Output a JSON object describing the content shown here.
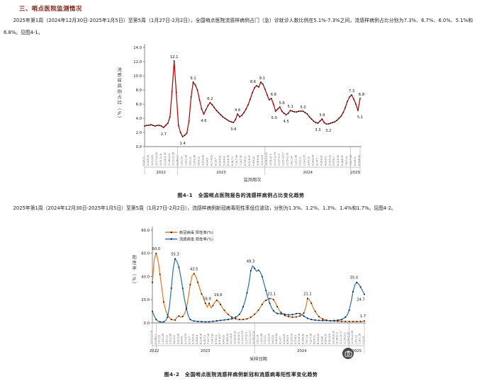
{
  "page": {
    "section_title": "三、哨点医院监测情况",
    "paragraph1": "2025年第1周（2024年12月30日-2025年1月5日）至第5周（1月27日-2月2日），全国哨点医院流感样病例占门（急）诊就诊人数比例在5.1%-7.3%之间，流感样病例占比分别为7.3%、6.7%、6.0%、5.1%和6.8%。见图4-1。",
    "caption1": "图4-1　全国哨点医院报告的流感样病例占比变化趋势",
    "paragraph2": "2025年第1周（2024年12月30日-2025年1月5日）至第5周（1月27日-2月2日），流感样病例新冠病毒阳性率低位波动，分别为1.3%、1.2%、1.3%、1.4%和1.7%。见图4-2。",
    "caption2": "图4-2　全国哨点医院流感样病例新冠和流感病毒阳性率变化趋势",
    "title_color": "#7e1d10"
  },
  "floating_button": {
    "bg": "#484848",
    "icon": "camera-icon"
  },
  "chart_data": [
    {
      "type": "line",
      "ylabel": "流感样病例占比（%）",
      "xlabel": "监测周次",
      "ylim": [
        0,
        14
      ],
      "ystep": 2,
      "grid": false,
      "x_tick_start_date": [
        2022,
        9,
        5
      ],
      "x_tick_format": "M.D-M.D weekly, rotated, illegible at scale",
      "year_groups": [
        {
          "label": "2022",
          "from": 0,
          "to": 15.5
        },
        {
          "label": "2023",
          "from": 15.5,
          "to": 57
        },
        {
          "label": "2024",
          "from": 57,
          "to": 97.5
        },
        {
          "label": "2025",
          "from": 97.5,
          "to": 102
        }
      ],
      "series": [
        {
          "name": "流感样病例占比(%)",
          "color": "#c00000",
          "values": [
            2.9,
            3.0,
            3.0,
            3.1,
            3.0,
            2.9,
            3.0,
            3.0,
            2.9,
            2.7,
            3.0,
            3.3,
            4.2,
            7.8,
            12.1,
            7.6,
            3.0,
            2.0,
            1.4,
            1.6,
            1.9,
            3.6,
            7.0,
            9.1,
            8.7,
            8.0,
            6.6,
            5.3,
            4.6,
            5.2,
            5.8,
            6.2,
            5.9,
            5.5,
            5.1,
            4.8,
            4.5,
            4.2,
            4.0,
            3.8,
            3.6,
            3.5,
            3.4,
            3.8,
            4.6,
            4.2,
            4.4,
            4.8,
            5.3,
            5.9,
            6.7,
            7.6,
            8.3,
            8.6,
            8.4,
            9.1,
            8.8,
            8.1,
            7.3,
            6.6,
            6.8,
            6.0,
            5.0,
            5.3,
            5.6,
            5.0,
            4.7,
            4.5,
            4.7,
            5.1,
            5.0,
            4.9,
            4.9,
            5.0,
            5.0,
            5.0,
            4.8,
            4.6,
            4.2,
            3.9,
            3.6,
            3.4,
            3.3,
            3.6,
            3.9,
            3.4,
            3.2,
            3.2,
            3.3,
            3.4,
            3.5,
            3.7,
            4.0,
            4.3,
            4.8,
            5.5,
            6.4,
            7.0,
            7.3,
            6.7,
            6.0,
            5.1,
            6.8
          ],
          "point_labels": [
            {
              "i": 9,
              "t": "2.7",
              "dy": 11
            },
            {
              "i": 14,
              "t": "12.1",
              "dy": -4
            },
            {
              "i": 18,
              "t": "1.4",
              "dy": 11
            },
            {
              "i": 23,
              "t": "9.1",
              "dy": -4
            },
            {
              "i": 28,
              "t": "4.6",
              "dy": 11
            },
            {
              "i": 31,
              "t": "6.2",
              "dy": -4
            },
            {
              "i": 42,
              "t": "3.4",
              "dy": 11
            },
            {
              "i": 44,
              "t": "4.6",
              "dy": -4
            },
            {
              "i": 53,
              "t": "8.6",
              "dy": -4,
              "dx": -5
            },
            {
              "i": 55,
              "t": "9.1",
              "dy": -4,
              "dx": 2
            },
            {
              "i": 60,
              "t": "6.8",
              "dy": -4,
              "dx": 3
            },
            {
              "i": 62,
              "t": "5.0",
              "dy": 11,
              "dx": -2
            },
            {
              "i": 64,
              "t": "5.6",
              "dy": -4,
              "dx": 3
            },
            {
              "i": 67,
              "t": "4.5",
              "dy": 11
            },
            {
              "i": 69,
              "t": "5.1",
              "dy": -4
            },
            {
              "i": 75,
              "t": "5.0",
              "dy": -4
            },
            {
              "i": 82,
              "t": "3.3",
              "dy": 11
            },
            {
              "i": 84,
              "t": "3.9",
              "dy": -4
            },
            {
              "i": 87,
              "t": "3.2",
              "dy": 11
            },
            {
              "i": 98,
              "t": "7.3",
              "dy": -4
            },
            {
              "i": 101,
              "t": "5.1",
              "dy": 11,
              "dx": 3
            },
            {
              "i": 102,
              "t": "6.8",
              "dy": -4,
              "dx": 2
            }
          ]
        }
      ]
    },
    {
      "type": "line",
      "ylabel": "阳性率（%）",
      "xlabel": "采样日期",
      "ylim": [
        0,
        80
      ],
      "ystep": 20,
      "grid": false,
      "legend_position": "top-left-inside",
      "x_tick_start_date": [
        2022,
        12,
        12
      ],
      "x_tick_format": "M.D-M.D weekly, rotated, illegible at scale",
      "year_groups": [
        {
          "label": "2022",
          "from": 0,
          "to": 2
        },
        {
          "label": "2023",
          "from": 2,
          "to": 54
        },
        {
          "label": "2024",
          "from": 54,
          "to": 104
        },
        {
          "label": "2025",
          "from": 104,
          "to": 112
        }
      ],
      "series": [
        {
          "name": "新冠病毒 阳性率(%)",
          "color": "#e87722",
          "values": [
            35,
            55,
            60,
            54,
            42,
            30,
            18,
            11,
            7,
            4.5,
            3,
            2.6,
            2.5,
            5,
            6,
            5,
            5.5,
            8,
            13,
            22,
            33,
            41,
            42.5,
            40,
            35,
            30,
            25,
            22,
            17,
            13.5,
            16.9,
            13,
            15,
            18,
            19.6,
            18.5,
            16,
            13,
            11,
            9,
            7.5,
            6,
            5,
            4.2,
            3.6,
            3.2,
            3,
            3,
            3,
            3.2,
            3.5,
            4,
            5,
            6,
            7.5,
            9,
            11,
            13.5,
            16,
            18.5,
            19.5,
            20.5,
            21,
            21.1,
            20,
            17.5,
            14,
            11,
            9,
            7.5,
            6.5,
            5.8,
            5.4,
            5.2,
            5,
            5,
            5.2,
            5.5,
            6,
            7,
            8.5,
            13,
            21.1,
            20,
            17,
            13,
            10,
            7.5,
            5.5,
            4.2,
            3.4,
            2.8,
            2.4,
            2.1,
            1.9,
            1.8,
            1.7,
            1.6,
            1.5,
            1.5,
            1.4,
            1.4,
            1.3,
            1.3,
            1.3,
            1.2,
            1.2,
            1.3,
            1.2,
            1.3,
            1.3,
            1.4,
            1.7
          ],
          "point_labels": [
            {
              "i": 2,
              "t": "60.0",
              "dy": -5
            },
            {
              "i": 22,
              "t": "42.5",
              "dy": -5
            },
            {
              "i": 30,
              "t": "16.9",
              "dy": -5,
              "dx": -3
            },
            {
              "i": 34,
              "t": "19.6",
              "dy": -6,
              "dx": 2
            },
            {
              "i": 63,
              "t": "21.1",
              "dy": -5
            },
            {
              "i": 82,
              "t": "21.1",
              "dy": -5
            },
            {
              "i": 112,
              "t": "1.7",
              "dy": -5,
              "dx": -2
            }
          ]
        },
        {
          "name": "流感病毒 阳性率(%)",
          "color": "#2e75b6",
          "values": [
            10,
            6,
            3,
            1.5,
            1,
            0.8,
            1,
            2,
            5,
            14,
            30,
            47,
            55.3,
            53,
            48,
            40,
            30,
            20,
            12,
            6,
            3,
            2,
            1.7,
            1.5,
            1.3,
            1.2,
            1.1,
            1,
            1,
            1,
            1,
            1.2,
            1.4,
            1.6,
            1.8,
            2,
            2.2,
            2.4,
            2.6,
            2.8,
            3,
            3.3,
            3.6,
            4,
            5,
            6,
            7.5,
            10,
            14,
            19,
            26,
            34,
            45,
            49.3,
            47,
            44.5,
            45.5,
            44,
            40,
            34,
            28,
            22,
            17,
            13,
            10.5,
            9,
            8.2,
            8,
            7.8,
            8,
            7.5,
            7.2,
            7,
            7,
            7.2,
            7.5,
            8,
            8.3,
            8,
            7,
            6,
            5,
            4,
            3.4,
            3,
            2.7,
            2.5,
            2.3,
            2.2,
            2.1,
            2.1,
            2.2,
            2.1,
            2,
            2,
            2,
            2.1,
            2.2,
            2.4,
            2.7,
            3,
            3.8,
            5,
            7,
            11,
            18,
            27,
            33,
            35,
            33.5,
            31,
            28,
            24.7
          ],
          "point_labels": [
            {
              "i": 12,
              "t": "55.3",
              "dy": -5
            },
            {
              "i": 53,
              "t": "49.3",
              "dy": -5,
              "dx": -3
            },
            {
              "i": 108,
              "t": "35.0",
              "dy": -5,
              "dx": -4
            },
            {
              "i": 112,
              "t": "24.7",
              "dy": 9,
              "dx": -5
            }
          ]
        }
      ]
    }
  ]
}
